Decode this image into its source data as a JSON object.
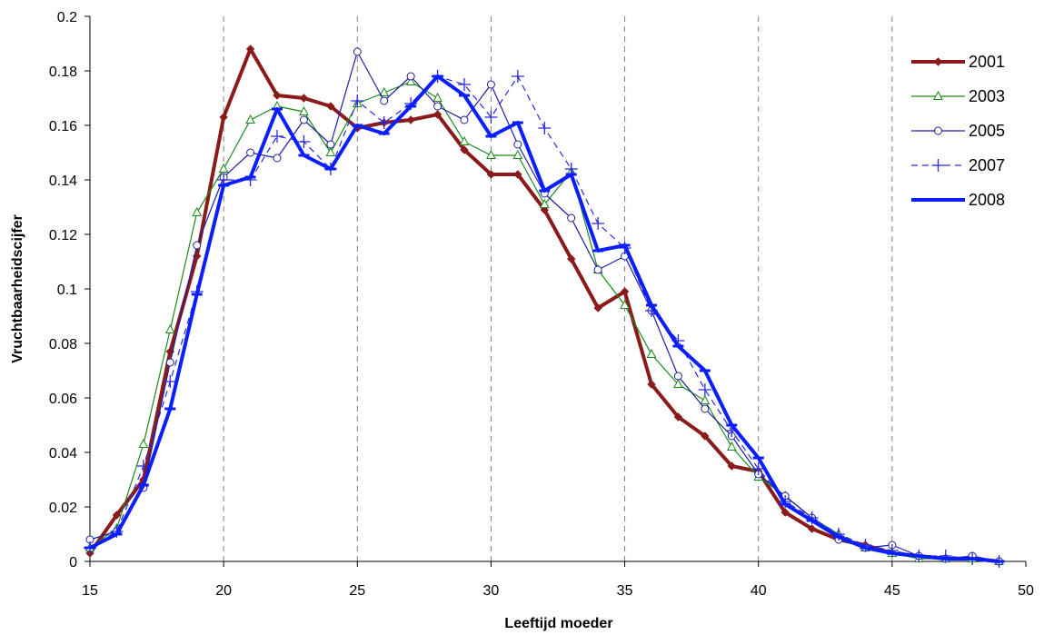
{
  "chart_data": {
    "type": "line",
    "xlabel": "Leeftijd moeder",
    "ylabel": "Vruchtbaarheidscijfer",
    "xlim": [
      15,
      50
    ],
    "ylim": [
      0,
      0.2
    ],
    "x_ticks": [
      "15",
      "20",
      "25",
      "30",
      "35",
      "40",
      "45",
      "50"
    ],
    "y_ticks": [
      "0",
      "0.02",
      "0.04",
      "0.06",
      "0.08",
      "0.1",
      "0.12",
      "0.14",
      "0.16",
      "0.18",
      "0.2"
    ],
    "vertical_gridlines": [
      20,
      25,
      30,
      35,
      40,
      45
    ],
    "gridline_style": "dashed",
    "legend_position": "top-right",
    "x": [
      15,
      16,
      17,
      18,
      19,
      20,
      21,
      22,
      23,
      24,
      25,
      26,
      27,
      28,
      29,
      30,
      31,
      32,
      33,
      34,
      35,
      36,
      37,
      38,
      39,
      40,
      41,
      42,
      43,
      44,
      45,
      46,
      47,
      48,
      49
    ],
    "series": [
      {
        "name": "2001",
        "color": "#8b1a1a",
        "marker": "diamond",
        "line": "solid",
        "weight": "thick",
        "values": [
          0.003,
          0.017,
          0.03,
          0.077,
          0.112,
          0.163,
          0.188,
          0.171,
          0.17,
          0.167,
          0.159,
          0.161,
          0.162,
          0.164,
          0.151,
          0.142,
          0.142,
          0.129,
          0.111,
          0.093,
          0.099,
          0.065,
          0.053,
          0.046,
          0.035,
          0.033,
          0.018,
          0.012,
          0.008,
          0.006,
          0.003,
          0.002,
          0.001,
          0.001,
          0.0
        ]
      },
      {
        "name": "2003",
        "color": "#1a8a1a",
        "marker": "triangle",
        "line": "solid",
        "weight": "thin",
        "values": [
          0.005,
          0.012,
          0.043,
          0.085,
          0.128,
          0.144,
          0.162,
          0.167,
          0.165,
          0.15,
          0.168,
          0.172,
          0.176,
          0.17,
          0.154,
          0.149,
          0.149,
          0.131,
          0.143,
          0.107,
          0.094,
          0.076,
          0.065,
          0.059,
          0.042,
          0.031,
          0.024,
          0.016,
          0.01,
          0.005,
          0.003,
          0.001,
          0.001,
          0.001,
          0.0
        ]
      },
      {
        "name": "2005",
        "color": "#1f1fa0",
        "marker": "circle",
        "line": "solid",
        "weight": "thin",
        "values": [
          0.008,
          0.011,
          0.027,
          0.073,
          0.116,
          0.141,
          0.15,
          0.148,
          0.162,
          0.153,
          0.187,
          0.169,
          0.178,
          0.167,
          0.162,
          0.175,
          0.153,
          0.135,
          0.126,
          0.107,
          0.112,
          0.092,
          0.068,
          0.056,
          0.046,
          0.032,
          0.024,
          0.016,
          0.008,
          0.005,
          0.006,
          0.002,
          0.001,
          0.002,
          0.0
        ]
      },
      {
        "name": "2007",
        "color": "#2b2bdc",
        "marker": "plus",
        "line": "dashed",
        "weight": "thin",
        "values": [
          0.005,
          0.011,
          0.035,
          0.066,
          0.099,
          0.14,
          0.14,
          0.156,
          0.154,
          0.144,
          0.169,
          0.161,
          0.168,
          0.178,
          0.175,
          0.163,
          0.178,
          0.159,
          0.144,
          0.124,
          0.115,
          0.092,
          0.081,
          0.063,
          0.048,
          0.034,
          0.022,
          0.016,
          0.01,
          0.006,
          0.004,
          0.002,
          0.002,
          0.001,
          0.0
        ]
      },
      {
        "name": "2008",
        "color": "#0a1eff",
        "marker": "dash",
        "line": "solid",
        "weight": "thick",
        "values": [
          0.005,
          0.01,
          0.028,
          0.056,
          0.098,
          0.138,
          0.141,
          0.166,
          0.149,
          0.144,
          0.16,
          0.157,
          0.167,
          0.178,
          0.171,
          0.156,
          0.161,
          0.136,
          0.142,
          0.114,
          0.116,
          0.094,
          0.079,
          0.07,
          0.05,
          0.038,
          0.021,
          0.015,
          0.009,
          0.005,
          0.003,
          0.002,
          0.001,
          0.001,
          0.0
        ]
      }
    ]
  }
}
